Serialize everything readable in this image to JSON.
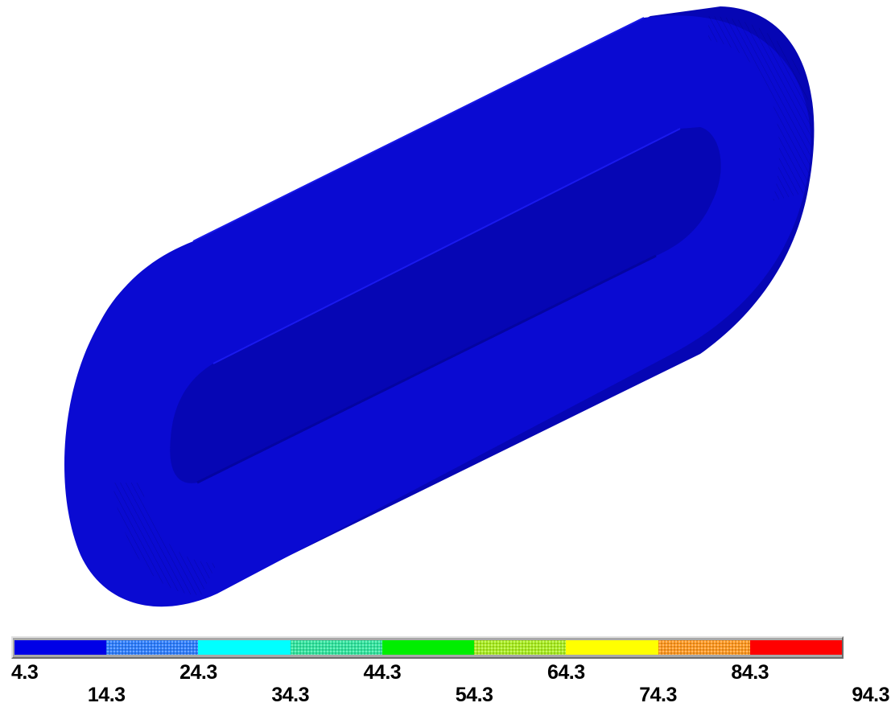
{
  "colors": {
    "surface": "#0a0ad2",
    "surface_shadow": "#0606a8",
    "surface_highlight": "#1414e6",
    "background": "#ffffff"
  },
  "legend": {
    "swatches": [
      {
        "color": "#0000e6",
        "pattern": "solid"
      },
      {
        "color": "#2f7fff",
        "pattern": "dither"
      },
      {
        "color": "#00ffff",
        "pattern": "solid"
      },
      {
        "color": "#33e6a0",
        "pattern": "dither"
      },
      {
        "color": "#00ee00",
        "pattern": "solid"
      },
      {
        "color": "#aaee22",
        "pattern": "dither"
      },
      {
        "color": "#ffff00",
        "pattern": "solid"
      },
      {
        "color": "#ff9922",
        "pattern": "dither"
      },
      {
        "color": "#ff0000",
        "pattern": "solid"
      }
    ],
    "ticks": [
      "4.3",
      "14.3",
      "24.3",
      "34.3",
      "44.3",
      "54.3",
      "64.3",
      "74.3",
      "84.3",
      "94.3"
    ]
  }
}
